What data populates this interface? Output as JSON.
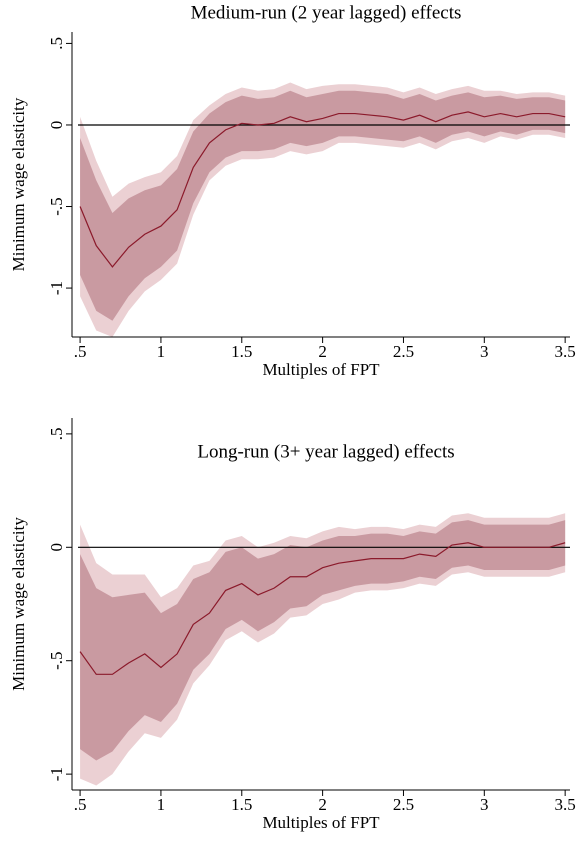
{
  "chart_data": [
    {
      "type": "line",
      "title": "Medium-run (2 year lagged) effects",
      "x_label": "Multiples of FPT",
      "y_label": "Minimum wage elasticity",
      "x": [
        0.5,
        0.6,
        0.7,
        0.8,
        0.9,
        1.0,
        1.1,
        1.2,
        1.3,
        1.4,
        1.5,
        1.6,
        1.7,
        1.8,
        1.9,
        2.0,
        2.1,
        2.2,
        2.3,
        2.4,
        2.5,
        2.6,
        2.7,
        2.8,
        2.9,
        3.0,
        3.1,
        3.2,
        3.3,
        3.4,
        3.5
      ],
      "estimate": {
        "color": "#8b1a2b",
        "values": [
          -0.5,
          -0.74,
          -0.87,
          -0.75,
          -0.67,
          -0.62,
          -0.52,
          -0.26,
          -0.11,
          -0.03,
          0.01,
          0.0,
          0.01,
          0.05,
          0.02,
          0.04,
          0.07,
          0.07,
          0.06,
          0.05,
          0.03,
          0.06,
          0.02,
          0.06,
          0.08,
          0.05,
          0.07,
          0.05,
          0.07,
          0.07,
          0.05
        ]
      },
      "bands": [
        {
          "color": "#ebd0d3",
          "upper": [
            0.05,
            -0.22,
            -0.44,
            -0.36,
            -0.32,
            -0.29,
            -0.19,
            0.03,
            0.12,
            0.19,
            0.23,
            0.21,
            0.22,
            0.26,
            0.22,
            0.24,
            0.25,
            0.25,
            0.24,
            0.23,
            0.2,
            0.23,
            0.19,
            0.22,
            0.24,
            0.21,
            0.21,
            0.19,
            0.2,
            0.2,
            0.18
          ],
          "lower": [
            -1.05,
            -1.26,
            -1.3,
            -1.14,
            -1.02,
            -0.95,
            -0.85,
            -0.55,
            -0.34,
            -0.25,
            -0.21,
            -0.21,
            -0.2,
            -0.16,
            -0.18,
            -0.16,
            -0.11,
            -0.11,
            -0.12,
            -0.13,
            -0.14,
            -0.11,
            -0.15,
            -0.1,
            -0.08,
            -0.11,
            -0.07,
            -0.09,
            -0.06,
            -0.06,
            -0.08
          ]
        },
        {
          "color": "#c99aa1",
          "upper": [
            -0.08,
            -0.34,
            -0.54,
            -0.45,
            -0.4,
            -0.37,
            -0.27,
            -0.04,
            0.07,
            0.14,
            0.18,
            0.16,
            0.17,
            0.21,
            0.17,
            0.19,
            0.21,
            0.21,
            0.2,
            0.19,
            0.16,
            0.19,
            0.15,
            0.18,
            0.2,
            0.17,
            0.18,
            0.16,
            0.17,
            0.17,
            0.15
          ],
          "lower": [
            -0.92,
            -1.14,
            -1.2,
            -1.05,
            -0.94,
            -0.87,
            -0.77,
            -0.48,
            -0.29,
            -0.2,
            -0.16,
            -0.16,
            -0.15,
            -0.11,
            -0.13,
            -0.11,
            -0.07,
            -0.07,
            -0.08,
            -0.09,
            -0.1,
            -0.07,
            -0.11,
            -0.06,
            -0.04,
            -0.07,
            -0.04,
            -0.06,
            -0.03,
            -0.03,
            -0.05
          ]
        }
      ],
      "hline": 0,
      "xlim": [
        0.45,
        3.53
      ],
      "ylim": [
        -1.3,
        0.57
      ],
      "xticks": [
        {
          "value": 0.5,
          "label": ".5"
        },
        1,
        1.5,
        2,
        2.5,
        3,
        3.5
      ],
      "yticks": [
        {
          "value": 0.5,
          "label": ".5"
        },
        0,
        {
          "value": -0.5,
          "label": "-.5"
        },
        -1
      ]
    },
    {
      "type": "line",
      "title": "Long-run (3+ year lagged) effects",
      "x_label": "Multiples of FPT",
      "y_label": "Minimum wage elasticity",
      "x": [
        0.5,
        0.6,
        0.7,
        0.8,
        0.9,
        1.0,
        1.1,
        1.2,
        1.3,
        1.4,
        1.5,
        1.6,
        1.7,
        1.8,
        1.9,
        2.0,
        2.1,
        2.2,
        2.3,
        2.4,
        2.5,
        2.6,
        2.7,
        2.8,
        2.9,
        3.0,
        3.1,
        3.2,
        3.3,
        3.4,
        3.5
      ],
      "estimate": {
        "color": "#8b1a2b",
        "values": [
          -0.46,
          -0.56,
          -0.56,
          -0.51,
          -0.47,
          -0.53,
          -0.47,
          -0.34,
          -0.29,
          -0.19,
          -0.16,
          -0.21,
          -0.18,
          -0.13,
          -0.13,
          -0.09,
          -0.07,
          -0.06,
          -0.05,
          -0.05,
          -0.05,
          -0.03,
          -0.04,
          0.01,
          0.02,
          0.0,
          0.0,
          0.0,
          0.0,
          0.0,
          0.02
        ]
      },
      "bands": [
        {
          "color": "#ebd0d3",
          "upper": [
            0.1,
            -0.07,
            -0.12,
            -0.12,
            -0.12,
            -0.22,
            -0.18,
            -0.08,
            -0.06,
            0.03,
            0.05,
            0.0,
            0.02,
            0.05,
            0.04,
            0.07,
            0.09,
            0.08,
            0.09,
            0.09,
            0.08,
            0.1,
            0.09,
            0.14,
            0.15,
            0.13,
            0.13,
            0.13,
            0.13,
            0.13,
            0.15
          ],
          "lower": [
            -1.02,
            -1.05,
            -1.0,
            -0.9,
            -0.82,
            -0.84,
            -0.76,
            -0.6,
            -0.52,
            -0.41,
            -0.37,
            -0.42,
            -0.38,
            -0.31,
            -0.3,
            -0.25,
            -0.23,
            -0.2,
            -0.19,
            -0.19,
            -0.18,
            -0.16,
            -0.17,
            -0.12,
            -0.11,
            -0.13,
            -0.13,
            -0.13,
            -0.13,
            -0.13,
            -0.11
          ]
        },
        {
          "color": "#c99aa1",
          "upper": [
            -0.03,
            -0.18,
            -0.22,
            -0.21,
            -0.2,
            -0.29,
            -0.25,
            -0.14,
            -0.11,
            -0.02,
            0.0,
            -0.05,
            -0.03,
            0.01,
            0.0,
            0.03,
            0.05,
            0.05,
            0.06,
            0.06,
            0.05,
            0.07,
            0.06,
            0.11,
            0.12,
            0.1,
            0.1,
            0.1,
            0.1,
            0.1,
            0.12
          ],
          "lower": [
            -0.89,
            -0.94,
            -0.9,
            -0.81,
            -0.74,
            -0.77,
            -0.69,
            -0.54,
            -0.47,
            -0.36,
            -0.32,
            -0.37,
            -0.33,
            -0.27,
            -0.26,
            -0.21,
            -0.19,
            -0.17,
            -0.16,
            -0.16,
            -0.15,
            -0.13,
            -0.14,
            -0.09,
            -0.08,
            -0.1,
            -0.1,
            -0.1,
            -0.1,
            -0.1,
            -0.08
          ]
        }
      ],
      "hline": 0,
      "xlim": [
        0.45,
        3.53
      ],
      "ylim": [
        -1.07,
        0.57
      ],
      "xticks": [
        {
          "value": 0.5,
          "label": ".5"
        },
        1,
        1.5,
        2,
        2.5,
        3,
        3.5
      ],
      "yticks": [
        {
          "value": 0.5,
          "label": ".5"
        },
        0,
        {
          "value": -0.5,
          "label": "-.5"
        },
        -1
      ]
    }
  ]
}
